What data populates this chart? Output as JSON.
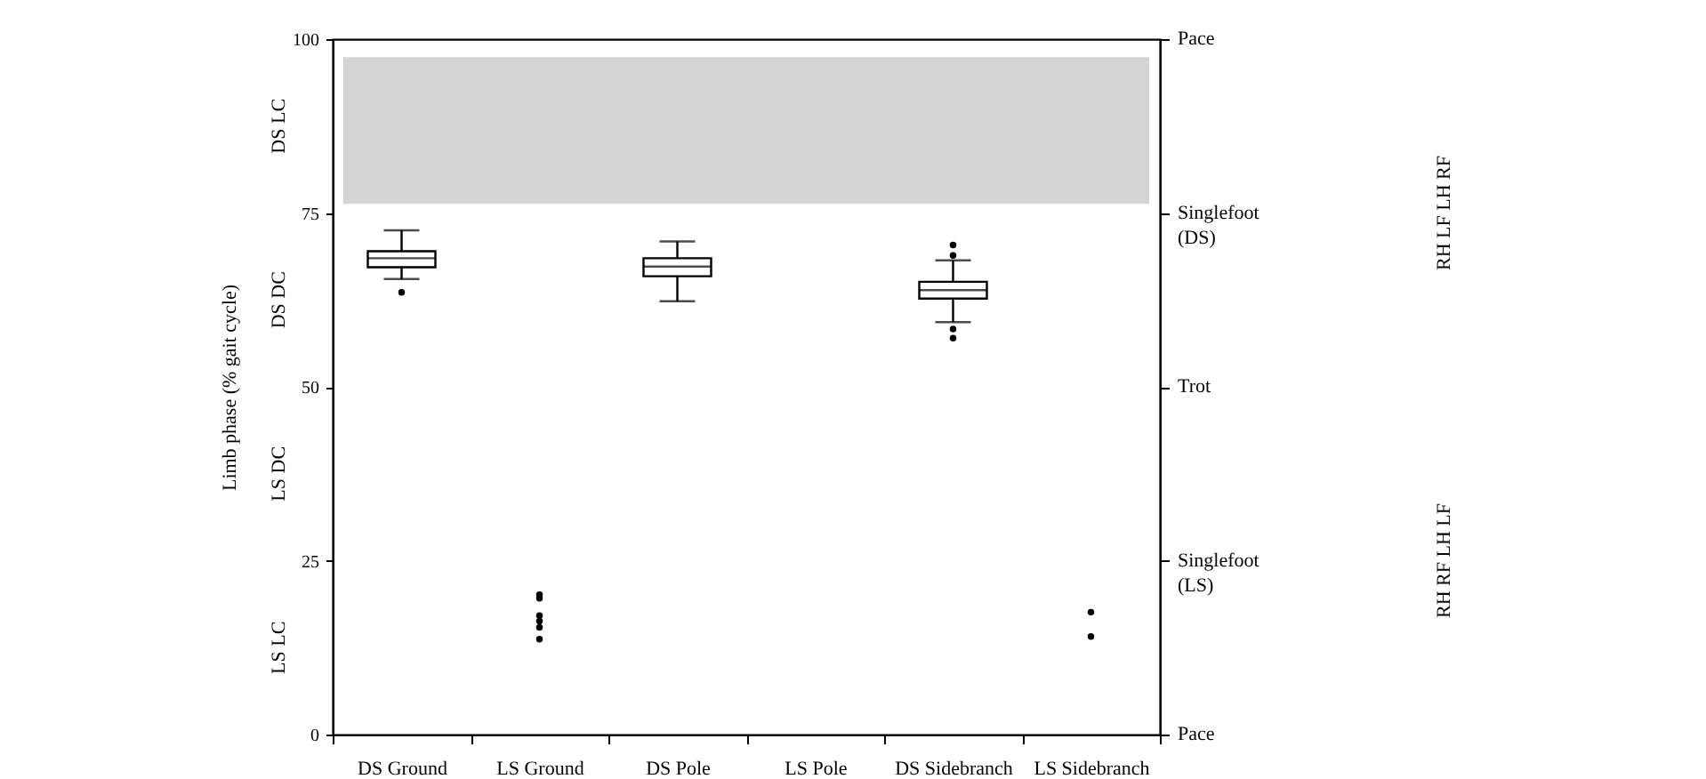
{
  "chart_data": {
    "type": "box",
    "ylabel": "Limb phase (% gait cycle)",
    "categories": [
      "DS Ground",
      "LS Ground",
      "DS Pole",
      "LS Pole",
      "DS Sidebranch",
      "LS Sidebranch"
    ],
    "boxes": [
      {
        "low": 65.5,
        "q1": 67.2,
        "median": 68.5,
        "q3": 69.5,
        "high": 72.5,
        "outliers": [
          63.6
        ]
      },
      null,
      {
        "low": 62.3,
        "q1": 65.9,
        "median": 67.3,
        "q3": 68.5,
        "high": 70.9
      },
      null,
      {
        "low": 59.3,
        "q1": 62.7,
        "median": 63.9,
        "q3": 65.1,
        "high": 68.2,
        "outliers": [
          70.4,
          68.9,
          58.3,
          57.0
        ]
      },
      null
    ],
    "series": [
      {
        "type": "scatter",
        "color": "#000000",
        "x": [
          "LS Ground",
          "LS Ground",
          "LS Ground",
          "LS Ground",
          "LS Ground",
          "LS Ground",
          "LS Sidebranch",
          "LS Sidebranch"
        ],
        "values": [
          20.1,
          19.6,
          17.1,
          16.3,
          15.4,
          13.7,
          17.6,
          14.1
        ]
      }
    ],
    "marker": "circle",
    "ylim": [
      0,
      100
    ],
    "yticks": [
      0,
      25,
      50,
      75,
      100
    ],
    "bands": [
      {
        "axis": "y",
        "from": 76.3,
        "to": 97.4,
        "color": "#d4d4d4"
      }
    ],
    "annotations": [
      "DS LC",
      "DS DC",
      "LS DC",
      "LS LC",
      "Pace",
      "Singlefoot\n(DS)",
      "Trot",
      "Singlefoot\n(LS)",
      "Pace",
      "RH LF LH RF",
      "RH RF LH LF"
    ],
    "grid": false
  }
}
